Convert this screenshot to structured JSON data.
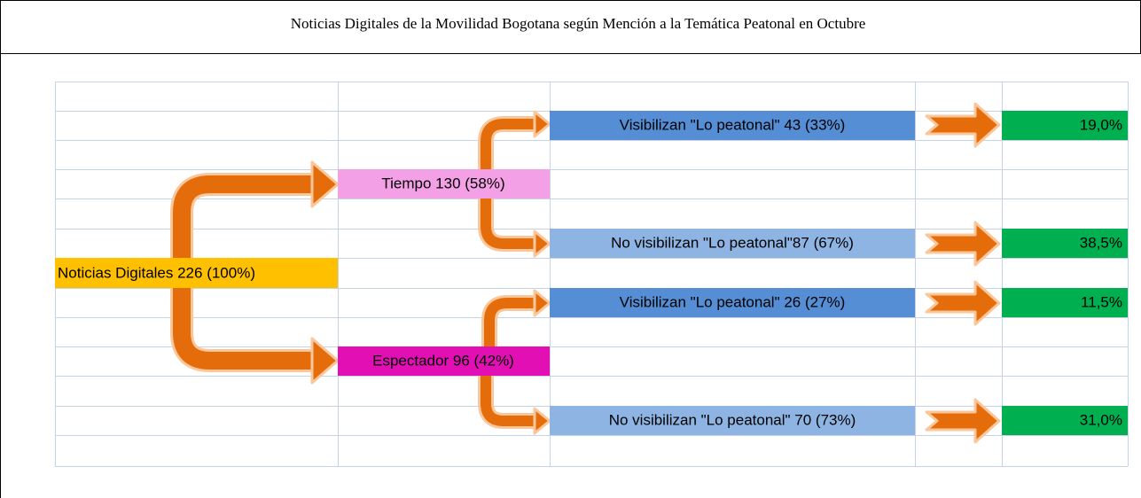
{
  "title": "Noticias Digitales de la Movilidad Bogotana según Mención a la Temática Peatonal en Octubre",
  "nodes": [
    {
      "label": "Noticias Digitales 226 (100%)"
    },
    {
      "label": "Tiempo 130 (58%)"
    },
    {
      "label": "Espectador 96 (42%)"
    },
    {
      "label": "Visibilizan \"Lo peatonal\" 43 (33%)"
    },
    {
      "label": "No visibilizan \"Lo peatonal\"87 (67%)"
    },
    {
      "label": "Visibilizan \"Lo peatonal\" 26 (27%)"
    },
    {
      "label": "No visibilizan \"Lo peatonal\" 70 (73%)"
    }
  ],
  "results": [
    "19,0%",
    "38,5%",
    "11,5%",
    "31,0%"
  ]
}
